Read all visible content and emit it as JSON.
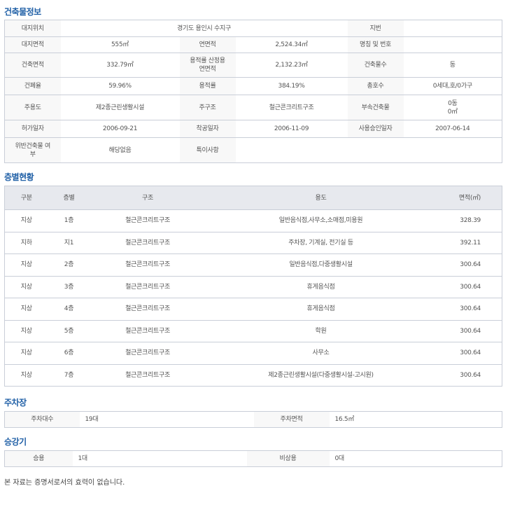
{
  "building": {
    "title": "건축물정보",
    "rows": [
      [
        [
          "대지위치",
          "l"
        ],
        [
          "경기도 용인시 수지구",
          "v",
          3
        ],
        [
          "지번",
          "l"
        ],
        [
          "",
          "v"
        ]
      ],
      [
        [
          "대지면적",
          "l"
        ],
        [
          "555㎡",
          "v"
        ],
        [
          "연면적",
          "l"
        ],
        [
          "2,524.34㎡",
          "v"
        ],
        [
          "명칭 및 번호",
          "l"
        ],
        [
          "",
          "v"
        ]
      ],
      [
        [
          "건축면적",
          "l"
        ],
        [
          "332.79㎡",
          "v"
        ],
        [
          "용적률 산정용 연면적",
          "l"
        ],
        [
          "2,132.23㎡",
          "v"
        ],
        [
          "건축물수",
          "l"
        ],
        [
          "동",
          "v"
        ]
      ],
      [
        [
          "건폐율",
          "l"
        ],
        [
          "59.96%",
          "v"
        ],
        [
          "용적률",
          "l"
        ],
        [
          "384.19%",
          "v"
        ],
        [
          "총호수",
          "l"
        ],
        [
          "0세대,호/0가구",
          "v"
        ]
      ],
      [
        [
          "주용도",
          "l"
        ],
        [
          "제2종근린생활시설",
          "v"
        ],
        [
          "주구조",
          "l"
        ],
        [
          "철근콘크리트구조",
          "v"
        ],
        [
          "부속건축물",
          "l"
        ],
        [
          "0동\n0㎡",
          "v"
        ]
      ],
      [
        [
          "허가일자",
          "l"
        ],
        [
          "2006-09-21",
          "v"
        ],
        [
          "착공일자",
          "l"
        ],
        [
          "2006-11-09",
          "v"
        ],
        [
          "사용승인일자",
          "l"
        ],
        [
          "2007-06-14",
          "v"
        ]
      ],
      [
        [
          "위반건축물 여부",
          "l"
        ],
        [
          "해당없음",
          "v"
        ],
        [
          "특이사항",
          "l"
        ],
        [
          "",
          "v",
          3
        ]
      ]
    ]
  },
  "floors": {
    "title": "층별현황",
    "headers": [
      "구분",
      "층별",
      "구조",
      "용도",
      "면적(㎡)"
    ],
    "rows": [
      [
        "지상",
        "1층",
        "철근콘크리트구조",
        "일반음식점,사무소,소매점,미용원",
        "328.39"
      ],
      [
        "지하",
        "지1",
        "철근콘크리트구조",
        "주차장, 기계실, 전기실 등",
        "392.11"
      ],
      [
        "지상",
        "2층",
        "철근콘크리트구조",
        "일반음식점,다중생활시설",
        "300.64"
      ],
      [
        "지상",
        "3층",
        "철근콘크리트구조",
        "휴게음식점",
        "300.64"
      ],
      [
        "지상",
        "4층",
        "철근콘크리트구조",
        "휴게음식점",
        "300.64"
      ],
      [
        "지상",
        "5층",
        "철근콘크리트구조",
        "학원",
        "300.64"
      ],
      [
        "지상",
        "6층",
        "철근콘크리트구조",
        "사무소",
        "300.64"
      ],
      [
        "지상",
        "7층",
        "철근콘크리트구조",
        "제2종근린생활시설(다중생활시설-고시원)",
        "300.64"
      ]
    ]
  },
  "parking": {
    "title": "주차장",
    "count_label": "주차대수",
    "count": "19대",
    "area_label": "주차면적",
    "area": "16.5㎡"
  },
  "elevator": {
    "title": "승강기",
    "passenger_label": "승용",
    "passenger": "1대",
    "emergency_label": "비상용",
    "emergency": "0대"
  },
  "footer": "본 자료는 증명서로서의 효력이 없습니다."
}
